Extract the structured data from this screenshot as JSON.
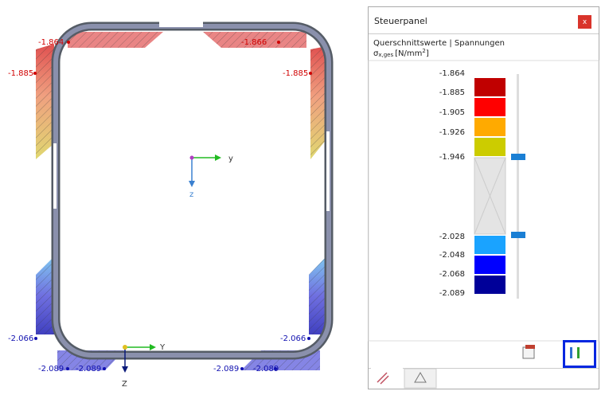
{
  "drawing": {
    "labels": [
      "-1.864",
      "-1.866",
      "-1.885",
      "-1.885",
      "-2.066",
      "-2.066",
      "-2.089",
      "-2.089",
      "-2.089",
      "-2.089"
    ],
    "axes": {
      "local_y": "y",
      "local_z": "z",
      "global_y": "Y",
      "global_z": "Z"
    }
  },
  "panel": {
    "title": "Steuerpanel",
    "close": "x",
    "heading": "Querschnittswerte | Spannungen",
    "quantity": {
      "symbol": "σ",
      "subscript": "x,ges",
      "unit": "[N/mm",
      "superscript": "2",
      "unit_end": "]"
    },
    "legend": [
      "-1.864",
      "-1.885",
      "-1.905",
      "-1.926",
      "-1.946",
      "-2.028",
      "-2.048",
      "-2.068",
      "-2.089"
    ]
  }
}
